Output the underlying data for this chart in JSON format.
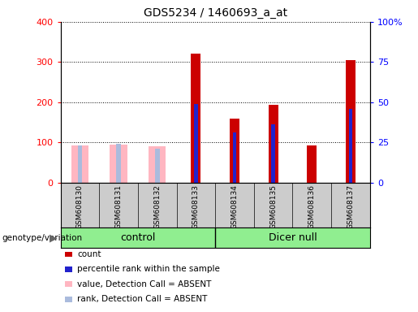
{
  "title": "GDS5234 / 1460693_a_at",
  "samples": [
    "GSM608130",
    "GSM608131",
    "GSM608132",
    "GSM608133",
    "GSM608134",
    "GSM608135",
    "GSM608136",
    "GSM608137"
  ],
  "count_values": [
    0,
    0,
    0,
    320,
    160,
    193,
    93,
    305
  ],
  "percentile_rank_raw": [
    0,
    0,
    0,
    49,
    31,
    36,
    0,
    46
  ],
  "absent_value": [
    93,
    95,
    90,
    0,
    0,
    0,
    0,
    0
  ],
  "absent_rank_raw": [
    23,
    24,
    21,
    0,
    0,
    0,
    0,
    0
  ],
  "left_ylim": [
    0,
    400
  ],
  "left_yticks": [
    0,
    100,
    200,
    300,
    400
  ],
  "right_yticks": [
    0,
    25,
    50,
    75,
    100
  ],
  "right_yticklabels": [
    "0",
    "25",
    "50",
    "75",
    "100%"
  ],
  "count_color": "#CC0000",
  "percentile_color": "#2222CC",
  "absent_value_color": "#FFB6C1",
  "absent_rank_color": "#AABBDD",
  "group_label": "genotype/variation",
  "control_label": "control",
  "dicernull_label": "Dicer null",
  "legend_labels": [
    "count",
    "percentile rank within the sample",
    "value, Detection Call = ABSENT",
    "rank, Detection Call = ABSENT"
  ],
  "legend_colors": [
    "#CC0000",
    "#2222CC",
    "#FFB6C1",
    "#AABBDD"
  ],
  "bg_color": "#CCCCCC",
  "group_color": "#90EE90",
  "plot_bg": "#FFFFFF"
}
